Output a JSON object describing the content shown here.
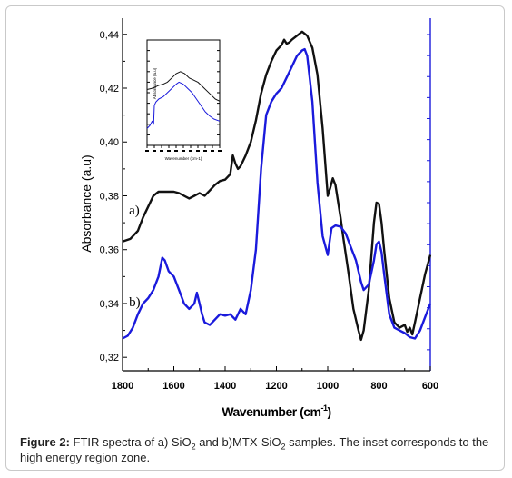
{
  "caption": {
    "label": "Figure 2:",
    "part1": " FTIR spectra of a) SiO",
    "sub1": "2",
    "part2": " and b)MTX-SiO",
    "sub2": "2",
    "part3": " samples. The inset corresponds to the high energy region zone."
  },
  "colors": {
    "series_a": "#111111",
    "series_b": "#1a1adc",
    "right_axis": "#1a1adc",
    "axis": "#000000"
  },
  "chart_data": {
    "type": "line",
    "title": "",
    "xlabel": "Wavenumber (cm",
    "xlabel_sup": "-1",
    "xlabel_close": ")",
    "ylabel": "Absorbance (a.u)",
    "xlim": [
      1800,
      600
    ],
    "ylim": [
      0.315,
      0.446
    ],
    "x_ticks": [
      1800,
      1600,
      1400,
      1200,
      1000,
      800,
      600
    ],
    "y_ticks": [
      0.32,
      0.34,
      0.36,
      0.38,
      0.4,
      0.42,
      0.44
    ],
    "y_tick_labels": [
      "0,32",
      "0,34",
      "0,36",
      "0,38",
      "0,40",
      "0,42",
      "0,44"
    ],
    "grid": false,
    "legend": "none",
    "series": [
      {
        "name": "a)",
        "x": [
          1800,
          1770,
          1740,
          1720,
          1700,
          1680,
          1660,
          1640,
          1620,
          1600,
          1580,
          1560,
          1540,
          1520,
          1500,
          1480,
          1460,
          1440,
          1420,
          1400,
          1380,
          1370,
          1360,
          1350,
          1340,
          1320,
          1300,
          1280,
          1260,
          1240,
          1220,
          1200,
          1180,
          1170,
          1160,
          1150,
          1140,
          1120,
          1100,
          1080,
          1060,
          1040,
          1020,
          1000,
          990,
          980,
          970,
          960,
          950,
          940,
          920,
          900,
          880,
          870,
          860,
          840,
          820,
          810,
          800,
          790,
          780,
          760,
          740,
          720,
          700,
          690,
          680,
          670,
          660,
          640,
          620,
          600
        ],
        "y": [
          0.363,
          0.364,
          0.367,
          0.372,
          0.376,
          0.38,
          0.3815,
          0.3815,
          0.3815,
          0.3815,
          0.381,
          0.38,
          0.379,
          0.38,
          0.381,
          0.38,
          0.382,
          0.384,
          0.3855,
          0.386,
          0.388,
          0.395,
          0.392,
          0.39,
          0.391,
          0.395,
          0.4,
          0.408,
          0.418,
          0.425,
          0.43,
          0.434,
          0.436,
          0.438,
          0.4365,
          0.437,
          0.438,
          0.4395,
          0.441,
          0.4395,
          0.435,
          0.425,
          0.405,
          0.38,
          0.383,
          0.3865,
          0.384,
          0.378,
          0.372,
          0.365,
          0.352,
          0.338,
          0.33,
          0.3265,
          0.33,
          0.345,
          0.37,
          0.3775,
          0.377,
          0.37,
          0.36,
          0.342,
          0.333,
          0.331,
          0.332,
          0.3295,
          0.331,
          0.3285,
          0.333,
          0.342,
          0.351,
          0.358
        ]
      },
      {
        "name": "b)",
        "x": [
          1800,
          1780,
          1760,
          1740,
          1720,
          1700,
          1680,
          1660,
          1645,
          1635,
          1620,
          1600,
          1580,
          1560,
          1540,
          1520,
          1510,
          1500,
          1490,
          1480,
          1460,
          1440,
          1420,
          1400,
          1380,
          1360,
          1340,
          1320,
          1300,
          1280,
          1260,
          1240,
          1220,
          1200,
          1180,
          1160,
          1140,
          1120,
          1100,
          1090,
          1080,
          1060,
          1040,
          1020,
          1000,
          985,
          970,
          950,
          930,
          910,
          890,
          870,
          860,
          840,
          820,
          810,
          800,
          790,
          780,
          760,
          740,
          720,
          700,
          680,
          660,
          640,
          620,
          600
        ],
        "y": [
          0.327,
          0.328,
          0.331,
          0.336,
          0.34,
          0.342,
          0.345,
          0.35,
          0.357,
          0.356,
          0.352,
          0.35,
          0.345,
          0.34,
          0.338,
          0.34,
          0.344,
          0.34,
          0.336,
          0.333,
          0.332,
          0.334,
          0.336,
          0.3355,
          0.336,
          0.334,
          0.338,
          0.336,
          0.345,
          0.36,
          0.39,
          0.41,
          0.415,
          0.418,
          0.42,
          0.424,
          0.428,
          0.432,
          0.434,
          0.4345,
          0.432,
          0.415,
          0.385,
          0.365,
          0.358,
          0.368,
          0.369,
          0.3685,
          0.366,
          0.361,
          0.356,
          0.348,
          0.345,
          0.347,
          0.356,
          0.362,
          0.363,
          0.359,
          0.351,
          0.336,
          0.331,
          0.33,
          0.329,
          0.3275,
          0.327,
          0.33,
          0.335,
          0.34
        ]
      }
    ],
    "annotations": [
      {
        "text": "a)",
        "x": 1775,
        "y": 0.373
      },
      {
        "text": "b)",
        "x": 1775,
        "y": 0.339
      }
    ],
    "right_axis": {
      "visible": true,
      "ticks": 16
    },
    "inset": {
      "type": "line",
      "xlabel": "Wavenumber (cm-1)",
      "ylabel": "Absorbance (a.u)",
      "xlim": [
        0,
        10
      ],
      "ylim": [
        0,
        10
      ],
      "x_ticks": [
        0,
        1,
        2,
        3,
        4,
        5,
        6,
        7,
        8,
        9,
        10
      ],
      "series": [
        {
          "name": "inset-a",
          "x": [
            0,
            0.6,
            1.0,
            1.6,
            2.2,
            2.8,
            3.4,
            4.0,
            4.6,
            5.2,
            5.8,
            6.4,
            7.0,
            7.6,
            8.2,
            8.8,
            9.4,
            10
          ],
          "y": [
            5.3,
            5.4,
            5.5,
            5.7,
            5.8,
            6.0,
            6.4,
            6.8,
            7.0,
            6.8,
            6.4,
            6.2,
            6.0,
            5.6,
            5.2,
            4.8,
            4.4,
            4.2
          ]
        },
        {
          "name": "inset-b",
          "x": [
            0,
            0.4,
            0.7,
            0.9,
            1.0,
            1.2,
            1.6,
            2.2,
            2.8,
            3.4,
            4.0,
            4.4,
            5.0,
            5.6,
            6.2,
            6.8,
            7.4,
            8.0,
            8.6,
            9.2,
            10
          ],
          "y": [
            1.6,
            1.9,
            2.3,
            2.0,
            3.8,
            4.1,
            4.4,
            4.6,
            5.0,
            5.4,
            5.8,
            6.0,
            5.8,
            5.4,
            5.0,
            4.4,
            3.8,
            3.2,
            2.8,
            2.5,
            2.3
          ]
        }
      ]
    }
  }
}
